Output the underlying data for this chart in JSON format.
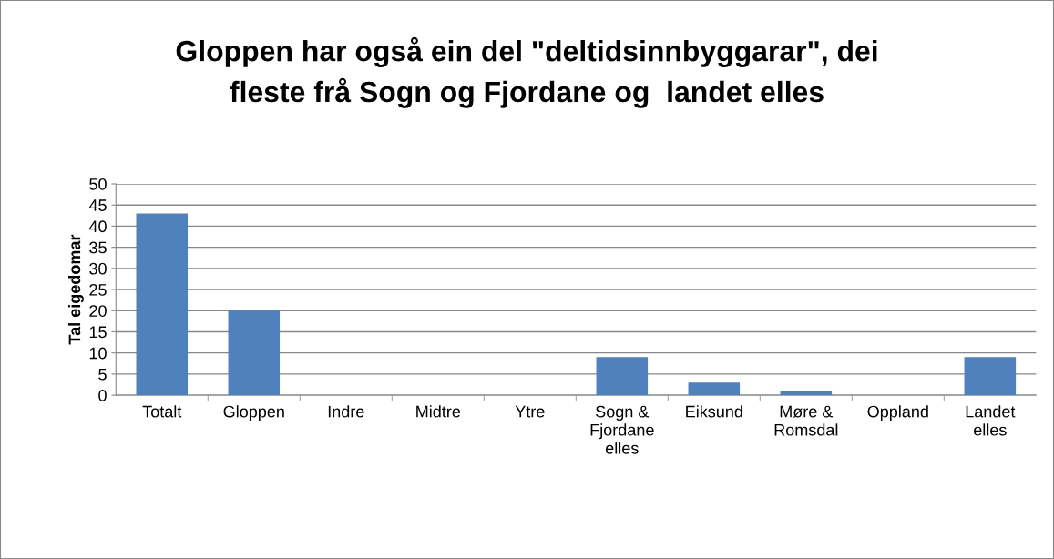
{
  "chart_data": {
    "type": "bar",
    "title": "Gloppen har også ein del \"deltidsinnbyggarar\", dei\nfleste frå Sogn og Fjordane og  landet elles",
    "ylabel": "Tal eigedomar",
    "categories": [
      "Totalt",
      "Gloppen",
      "Indre",
      "Midtre",
      "Ytre",
      "Sogn &\nFjordane\nelles",
      "Eiksund",
      "Møre &\nRomsdal",
      "Oppland",
      "Landet\nelles"
    ],
    "values": [
      43,
      20,
      0,
      0,
      0,
      9,
      3,
      1,
      0,
      9
    ],
    "color": "#4f81bd",
    "ylim": [
      0,
      50
    ],
    "yticks": [
      0,
      5,
      10,
      15,
      20,
      25,
      30,
      35,
      40,
      45,
      50
    ],
    "grid": "y",
    "legend": false
  }
}
